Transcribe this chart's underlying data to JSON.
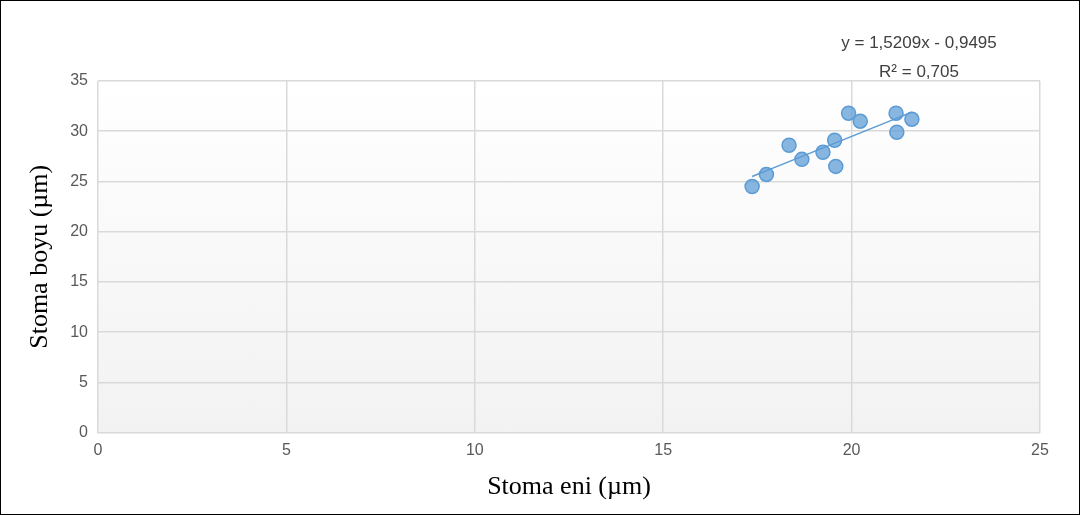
{
  "chart_data": {
    "type": "scatter",
    "xlabel": "Stoma eni (µm)",
    "ylabel": "Stoma boyu (µm)",
    "annotations": [
      "y = 1,5209x - 0,9495",
      "R² = 0,705"
    ],
    "series": [
      {
        "color": "#5b9bd5",
        "marker": "circle",
        "x": [
          17.36,
          17.74,
          18.34,
          18.68,
          19.24,
          19.55,
          19.58,
          19.92,
          20.23,
          21.18,
          21.2,
          21.6
        ],
        "values": [
          24.5,
          25.7,
          28.6,
          27.2,
          27.9,
          29.1,
          26.5,
          31.8,
          31.0,
          31.8,
          29.9,
          31.2
        ]
      },
      {
        "type": "line",
        "color": "#5b9bd5",
        "marker": "none",
        "x": [
          17.36,
          21.6
        ],
        "values": [
          25.5,
          31.9
        ]
      }
    ],
    "xlim": [
      0,
      25
    ],
    "xticks": [
      0,
      5,
      10,
      15,
      20,
      25
    ],
    "ylim": [
      0,
      35
    ],
    "yticks": [
      0,
      5,
      10,
      15,
      20,
      25,
      30,
      35
    ],
    "grid": true,
    "legend": false,
    "line_style": "solid"
  }
}
